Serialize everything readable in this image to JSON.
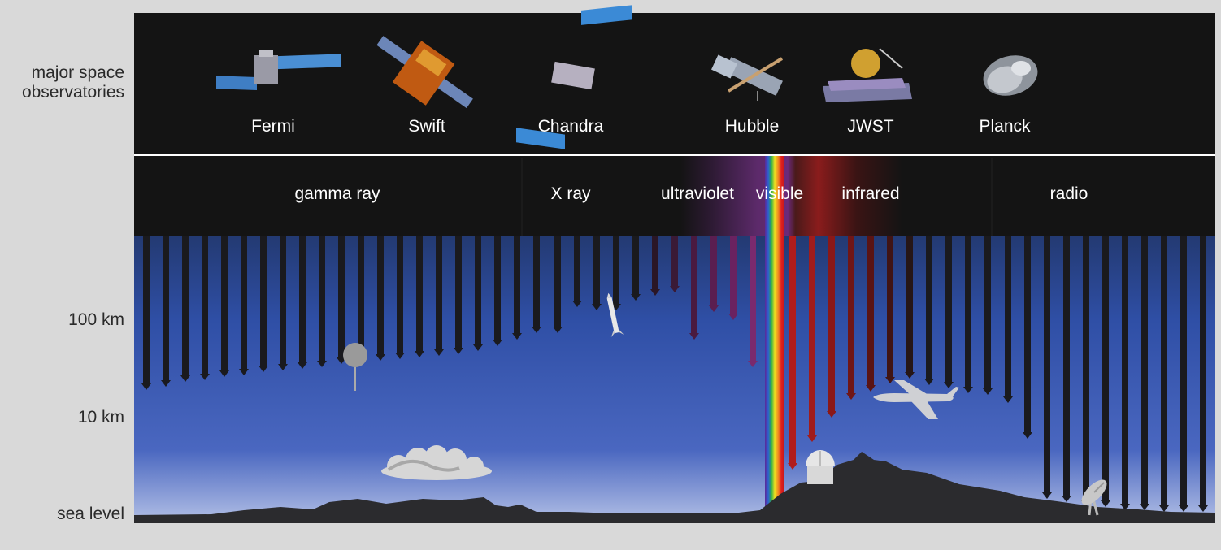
{
  "side_labels": {
    "observatories": "major space\nobservatories",
    "altitude_100km": "100 km",
    "altitude_10km": "10 km",
    "sea_level": "sea level"
  },
  "observatories": [
    {
      "name": "Fermi",
      "icon": "fermi-satellite-icon"
    },
    {
      "name": "Swift",
      "icon": "swift-satellite-icon"
    },
    {
      "name": "Chandra",
      "icon": "chandra-satellite-icon"
    },
    {
      "name": "Hubble",
      "icon": "hubble-telescope-icon"
    },
    {
      "name": "JWST",
      "icon": "jwst-telescope-icon"
    },
    {
      "name": "Planck",
      "icon": "planck-satellite-icon"
    }
  ],
  "bands": [
    {
      "name": "gamma ray"
    },
    {
      "name": "X ray"
    },
    {
      "name": "ultraviolet"
    },
    {
      "name": "visible"
    },
    {
      "name": "infrared"
    },
    {
      "name": "radio"
    }
  ],
  "ground_objects": [
    "balloon-icon",
    "rocket-icon",
    "cloud-icon",
    "observatory-dome-icon",
    "airplane-icon",
    "radio-dish-icon"
  ],
  "colors": {
    "background": "#d9d9d9",
    "panel": "#141414",
    "sky_top": "#0e1530",
    "sky_mid": "#2f4fa6",
    "sky_bottom": "#b3c0e6",
    "ground": "#2b2b2e",
    "ultraviolet": "#7a2a6e",
    "infrared": "#9e1c1c"
  }
}
